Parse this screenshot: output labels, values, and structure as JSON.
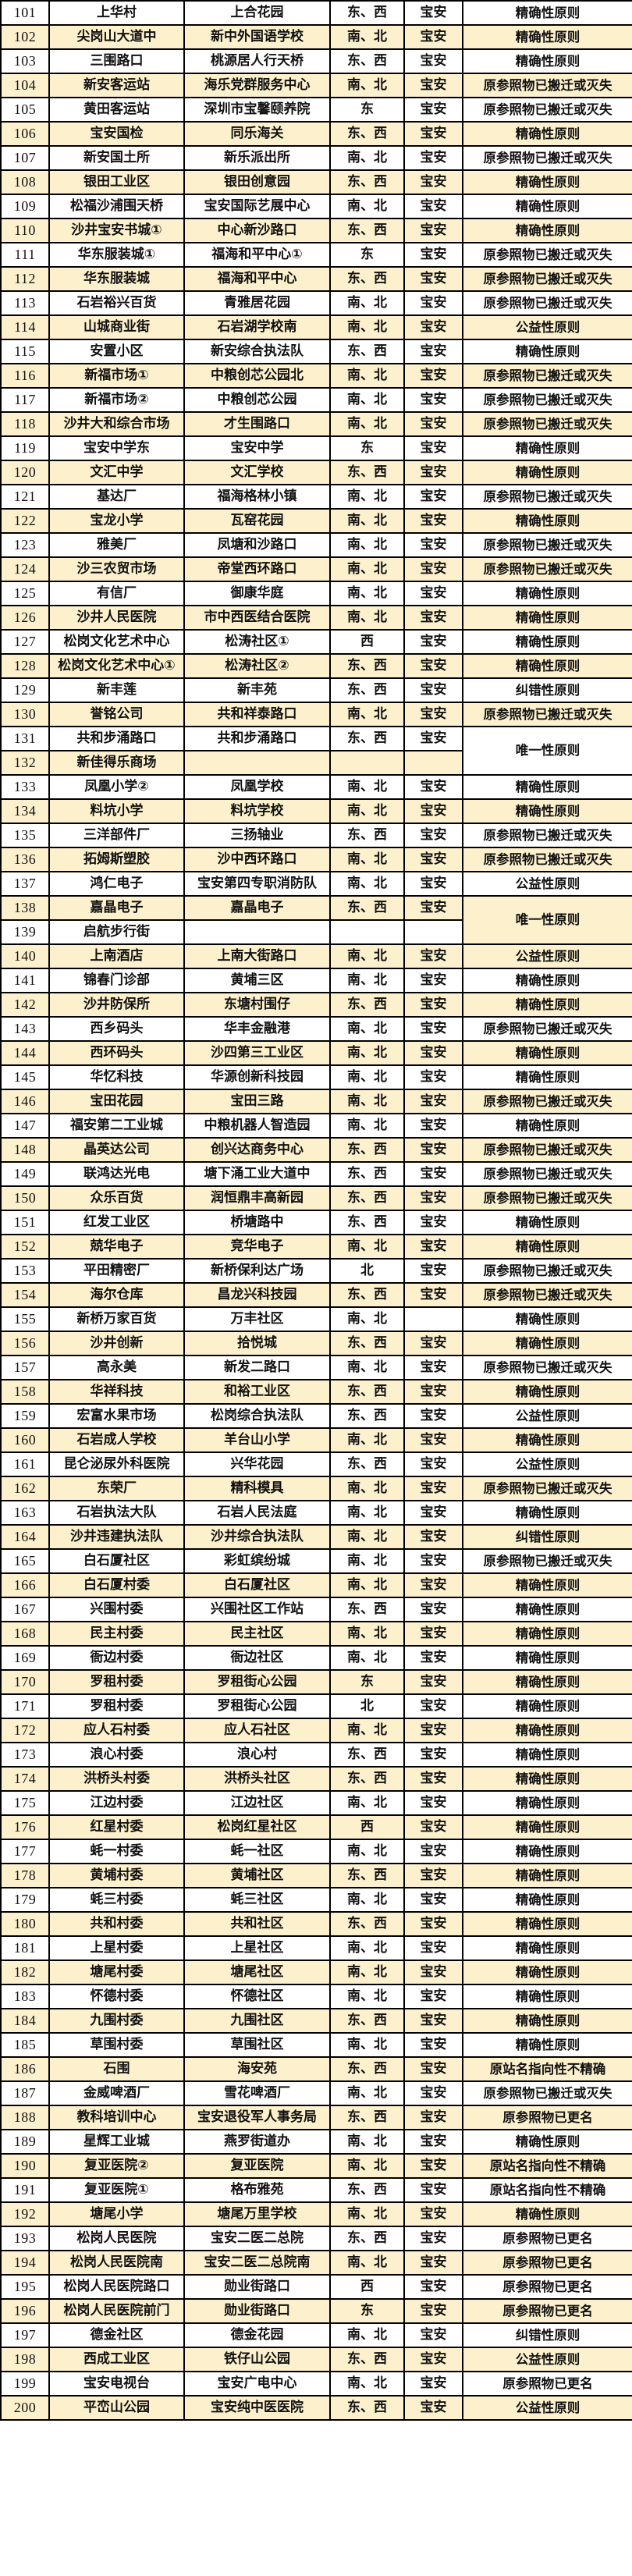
{
  "table": {
    "district_label": "宝安",
    "reason_types": [
      "精确性原则",
      "原参照物已搬迁或灭失",
      "公益性原则",
      "唯一性原则",
      "纠错性原则",
      "原站名指向性不精确",
      "原参照物已更名"
    ],
    "direction_types": [
      "东、西",
      "南、北",
      "东",
      "西",
      "北"
    ],
    "stripe_color": "#fdf1cd",
    "rows": [
      {
        "no": "101",
        "old": "上华村",
        "new": "上合花园",
        "dir": "东、西",
        "district": "宝安",
        "reason": "精确性原则"
      },
      {
        "no": "102",
        "old": "尖岗山大道中",
        "new": "新中外国语学校",
        "dir": "南、北",
        "district": "宝安",
        "reason": "精确性原则"
      },
      {
        "no": "103",
        "old": "三围路口",
        "new": "桃源居人行天桥",
        "dir": "东、西",
        "district": "宝安",
        "reason": "精确性原则"
      },
      {
        "no": "104",
        "old": "新安客运站",
        "new": "海乐党群服务中心",
        "dir": "南、北",
        "district": "宝安",
        "reason": "原参照物已搬迁或灭失"
      },
      {
        "no": "105",
        "old": "黄田客运站",
        "new": "深圳市宝馨颐养院",
        "dir": "东",
        "district": "宝安",
        "reason": "原参照物已搬迁或灭失"
      },
      {
        "no": "106",
        "old": "宝安国检",
        "new": "同乐海关",
        "dir": "东、西",
        "district": "宝安",
        "reason": "精确性原则"
      },
      {
        "no": "107",
        "old": "新安国土所",
        "new": "新乐派出所",
        "dir": "南、北",
        "district": "宝安",
        "reason": "原参照物已搬迁或灭失"
      },
      {
        "no": "108",
        "old": "银田工业区",
        "new": "银田创意园",
        "dir": "东、西",
        "district": "宝安",
        "reason": "精确性原则"
      },
      {
        "no": "109",
        "old": "松福沙浦围天桥",
        "new": "宝安国际艺展中心",
        "dir": "南、北",
        "district": "宝安",
        "reason": "精确性原则"
      },
      {
        "no": "110",
        "old": "沙井宝安书城①",
        "new": "中心新沙路口",
        "dir": "东、西",
        "district": "宝安",
        "reason": "精确性原则"
      },
      {
        "no": "111",
        "old": "华东服装城①",
        "new": "福海和平中心①",
        "dir": "东",
        "district": "宝安",
        "reason": "原参照物已搬迁或灭失"
      },
      {
        "no": "112",
        "old": "华东服装城",
        "new": "福海和平中心",
        "dir": "东、西",
        "district": "宝安",
        "reason": "原参照物已搬迁或灭失"
      },
      {
        "no": "113",
        "old": "石岩裕兴百货",
        "new": "青雅居花园",
        "dir": "南、北",
        "district": "宝安",
        "reason": "原参照物已搬迁或灭失"
      },
      {
        "no": "114",
        "old": "山城商业街",
        "new": "石岩湖学校南",
        "dir": "南、北",
        "district": "宝安",
        "reason": "公益性原则"
      },
      {
        "no": "115",
        "old": "安置小区",
        "new": "新安综合执法队",
        "dir": "东、西",
        "district": "宝安",
        "reason": "精确性原则"
      },
      {
        "no": "116",
        "old": "新福市场①",
        "new": "中粮创芯公园北",
        "dir": "南、北",
        "district": "宝安",
        "reason": "原参照物已搬迁或灭失"
      },
      {
        "no": "117",
        "old": "新福市场②",
        "new": "中粮创芯公园",
        "dir": "南、北",
        "district": "宝安",
        "reason": "原参照物已搬迁或灭失"
      },
      {
        "no": "118",
        "old": "沙井大和综合市场",
        "new": "才生围路口",
        "dir": "南、北",
        "district": "宝安",
        "reason": "原参照物已搬迁或灭失"
      },
      {
        "no": "119",
        "old": "宝安中学东",
        "new": "宝安中学",
        "dir": "东",
        "district": "宝安",
        "reason": "精确性原则"
      },
      {
        "no": "120",
        "old": "文汇中学",
        "new": "文汇学校",
        "dir": "东、西",
        "district": "宝安",
        "reason": "精确性原则"
      },
      {
        "no": "121",
        "old": "基达厂",
        "new": "福海格林小镇",
        "dir": "南、北",
        "district": "宝安",
        "reason": "原参照物已搬迁或灭失"
      },
      {
        "no": "122",
        "old": "宝龙小学",
        "new": "瓦窑花园",
        "dir": "南、北",
        "district": "宝安",
        "reason": "精确性原则"
      },
      {
        "no": "123",
        "old": "雅美厂",
        "new": "凤塘和沙路口",
        "dir": "南、北",
        "district": "宝安",
        "reason": "原参照物已搬迁或灭失"
      },
      {
        "no": "124",
        "old": "沙三农贸市场",
        "new": "帝堂西环路口",
        "dir": "南、北",
        "district": "宝安",
        "reason": "原参照物已搬迁或灭失"
      },
      {
        "no": "125",
        "old": "有信厂",
        "new": "御康华庭",
        "dir": "南、北",
        "district": "宝安",
        "reason": "精确性原则"
      },
      {
        "no": "126",
        "old": "沙井人民医院",
        "new": "市中西医结合医院",
        "dir": "南、北",
        "district": "宝安",
        "reason": "精确性原则"
      },
      {
        "no": "127",
        "old": "松岗文化艺术中心",
        "new": "松涛社区①",
        "dir": "西",
        "district": "宝安",
        "reason": "精确性原则"
      },
      {
        "no": "128",
        "old": "松岗文化艺术中心①",
        "new": "松涛社区②",
        "dir": "东、西",
        "district": "宝安",
        "reason": "精确性原则"
      },
      {
        "no": "129",
        "old": "新丰莲",
        "new": "新丰苑",
        "dir": "东、西",
        "district": "宝安",
        "reason": "纠错性原则"
      },
      {
        "no": "130",
        "old": "誉铭公司",
        "new": "共和祥泰路口",
        "dir": "南、北",
        "district": "宝安",
        "reason": "原参照物已搬迁或灭失"
      },
      {
        "no": "131",
        "old": "共和步涌路口",
        "new": "共和步涌路口",
        "dir": "东、西",
        "district": "宝安",
        "reason": "唯一性原则",
        "reason_rowspan": 2
      },
      {
        "no": "132",
        "old": "新佳得乐商场",
        "new": "",
        "dir": "",
        "district": "",
        "reason": null
      },
      {
        "no": "133",
        "old": "凤凰小学②",
        "new": "凤凰学校",
        "dir": "南、北",
        "district": "宝安",
        "reason": "精确性原则"
      },
      {
        "no": "134",
        "old": "料坑小学",
        "new": "料坑学校",
        "dir": "南、北",
        "district": "宝安",
        "reason": "精确性原则"
      },
      {
        "no": "135",
        "old": "三洋部件厂",
        "new": "三扬轴业",
        "dir": "东、西",
        "district": "宝安",
        "reason": "原参照物已搬迁或灭失"
      },
      {
        "no": "136",
        "old": "拓姆斯塑胶",
        "new": "沙中西环路口",
        "dir": "南、北",
        "district": "宝安",
        "reason": "原参照物已搬迁或灭失"
      },
      {
        "no": "137",
        "old": "鸿仁电子",
        "new": "宝安第四专职消防队",
        "dir": "南、北",
        "district": "宝安",
        "reason": "公益性原则"
      },
      {
        "no": "138",
        "old": "嘉晶电子",
        "new": "嘉晶电子",
        "dir": "东、西",
        "district": "宝安",
        "reason": "唯一性原则",
        "reason_rowspan": 2
      },
      {
        "no": "139",
        "old": "启航步行街",
        "new": "",
        "dir": "",
        "district": "",
        "reason": null
      },
      {
        "no": "140",
        "old": "上南酒店",
        "new": "上南大街路口",
        "dir": "南、北",
        "district": "宝安",
        "reason": "公益性原则"
      },
      {
        "no": "141",
        "old": "锦春门诊部",
        "new": "黄埔三区",
        "dir": "南、北",
        "district": "宝安",
        "reason": "精确性原则"
      },
      {
        "no": "142",
        "old": "沙井防保所",
        "new": "东塘村围仔",
        "dir": "东、西",
        "district": "宝安",
        "reason": "精确性原则"
      },
      {
        "no": "143",
        "old": "西乡码头",
        "new": "华丰金融港",
        "dir": "南、北",
        "district": "宝安",
        "reason": "原参照物已搬迁或灭失"
      },
      {
        "no": "144",
        "old": "西环码头",
        "new": "沙四第三工业区",
        "dir": "南、北",
        "district": "宝安",
        "reason": "精确性原则"
      },
      {
        "no": "145",
        "old": "华忆科技",
        "new": "华源创新科技园",
        "dir": "南、北",
        "district": "宝安",
        "reason": "精确性原则"
      },
      {
        "no": "146",
        "old": "宝田花园",
        "new": "宝田三路",
        "dir": "南、北",
        "district": "宝安",
        "reason": "原参照物已搬迁或灭失"
      },
      {
        "no": "147",
        "old": "福安第二工业城",
        "new": "中粮机器人智造园",
        "dir": "南、北",
        "district": "宝安",
        "reason": "精确性原则"
      },
      {
        "no": "148",
        "old": "晶英达公司",
        "new": "创兴达商务中心",
        "dir": "东、西",
        "district": "宝安",
        "reason": "原参照物已搬迁或灭失"
      },
      {
        "no": "149",
        "old": "联鸿达光电",
        "new": "塘下涌工业大道中",
        "dir": "东、西",
        "district": "宝安",
        "reason": "原参照物已搬迁或灭失"
      },
      {
        "no": "150",
        "old": "众乐百货",
        "new": "润恒鼎丰高新园",
        "dir": "东、西",
        "district": "宝安",
        "reason": "原参照物已搬迁或灭失"
      },
      {
        "no": "151",
        "old": "红发工业区",
        "new": "桥塘路中",
        "dir": "东、西",
        "district": "宝安",
        "reason": "精确性原则"
      },
      {
        "no": "152",
        "old": "兢华电子",
        "new": "竞华电子",
        "dir": "南、北",
        "district": "宝安",
        "reason": "精确性原则"
      },
      {
        "no": "153",
        "old": "平田精密厂",
        "new": "新桥保利达广场",
        "dir": "北",
        "district": "宝安",
        "reason": "原参照物已搬迁或灭失"
      },
      {
        "no": "154",
        "old": "海尔仓库",
        "new": "昌龙兴科技园",
        "dir": "东、西",
        "district": "宝安",
        "reason": "原参照物已搬迁或灭失"
      },
      {
        "no": "155",
        "old": "新桥万家百货",
        "new": "万丰社区",
        "dir": "南、北",
        "district": "",
        "reason": "精确性原则"
      },
      {
        "no": "156",
        "old": "沙井创新",
        "new": "拾悦城",
        "dir": "东、西",
        "district": "宝安",
        "reason": "精确性原则"
      },
      {
        "no": "157",
        "old": "高永美",
        "new": "新发二路口",
        "dir": "南、北",
        "district": "宝安",
        "reason": "原参照物已搬迁或灭失"
      },
      {
        "no": "158",
        "old": "华祥科技",
        "new": "和裕工业区",
        "dir": "东、西",
        "district": "宝安",
        "reason": "精确性原则"
      },
      {
        "no": "159",
        "old": "宏富水果市场",
        "new": "松岗综合执法队",
        "dir": "东、西",
        "district": "宝安",
        "reason": "公益性原则"
      },
      {
        "no": "160",
        "old": "石岩成人学校",
        "new": "羊台山小学",
        "dir": "南、北",
        "district": "宝安",
        "reason": "精确性原则"
      },
      {
        "no": "161",
        "old": "昆仑泌尿外科医院",
        "new": "兴华花园",
        "dir": "东、西",
        "district": "宝安",
        "reason": "公益性原则"
      },
      {
        "no": "162",
        "old": "东荣厂",
        "new": "精科模具",
        "dir": "南、北",
        "district": "宝安",
        "reason": "原参照物已搬迁或灭失"
      },
      {
        "no": "163",
        "old": "石岩执法大队",
        "new": "石岩人民法庭",
        "dir": "南、北",
        "district": "宝安",
        "reason": "精确性原则"
      },
      {
        "no": "164",
        "old": "沙井违建执法队",
        "new": "沙井综合执法队",
        "dir": "南、北",
        "district": "宝安",
        "reason": "纠错性原则"
      },
      {
        "no": "165",
        "old": "白石厦社区",
        "new": "彩虹缤纷城",
        "dir": "南、北",
        "district": "宝安",
        "reason": "原参照物已搬迁或灭失"
      },
      {
        "no": "166",
        "old": "白石厦村委",
        "new": "白石厦社区",
        "dir": "南、北",
        "district": "宝安",
        "reason": "精确性原则"
      },
      {
        "no": "167",
        "old": "兴围村委",
        "new": "兴围社区工作站",
        "dir": "东、西",
        "district": "宝安",
        "reason": "精确性原则"
      },
      {
        "no": "168",
        "old": "民主村委",
        "new": "民主社区",
        "dir": "南、北",
        "district": "宝安",
        "reason": "精确性原则"
      },
      {
        "no": "169",
        "old": "衙边村委",
        "new": "衙边社区",
        "dir": "南、北",
        "district": "宝安",
        "reason": "精确性原则"
      },
      {
        "no": "170",
        "old": "罗租村委",
        "new": "罗租街心公园",
        "dir": "东",
        "district": "宝安",
        "reason": "精确性原则"
      },
      {
        "no": "171",
        "old": "罗租村委",
        "new": "罗租街心公园",
        "dir": "北",
        "district": "宝安",
        "reason": "精确性原则"
      },
      {
        "no": "172",
        "old": "应人石村委",
        "new": "应人石社区",
        "dir": "南、北",
        "district": "宝安",
        "reason": "精确性原则"
      },
      {
        "no": "173",
        "old": "浪心村委",
        "new": "浪心村",
        "dir": "东、西",
        "district": "宝安",
        "reason": "精确性原则"
      },
      {
        "no": "174",
        "old": "洪桥头村委",
        "new": "洪桥头社区",
        "dir": "东、西",
        "district": "宝安",
        "reason": "精确性原则"
      },
      {
        "no": "175",
        "old": "江边村委",
        "new": "江边社区",
        "dir": "南、北",
        "district": "宝安",
        "reason": "精确性原则"
      },
      {
        "no": "176",
        "old": "红星村委",
        "new": "松岗红星社区",
        "dir": "西",
        "district": "宝安",
        "reason": "精确性原则"
      },
      {
        "no": "177",
        "old": "蚝一村委",
        "new": "蚝一社区",
        "dir": "南、北",
        "district": "宝安",
        "reason": "精确性原则"
      },
      {
        "no": "178",
        "old": "黄埔村委",
        "new": "黄埔社区",
        "dir": "东、西",
        "district": "宝安",
        "reason": "精确性原则"
      },
      {
        "no": "179",
        "old": "蚝三村委",
        "new": "蚝三社区",
        "dir": "南、北",
        "district": "宝安",
        "reason": "精确性原则"
      },
      {
        "no": "180",
        "old": "共和村委",
        "new": "共和社区",
        "dir": "东、西",
        "district": "宝安",
        "reason": "精确性原则"
      },
      {
        "no": "181",
        "old": "上星村委",
        "new": "上星社区",
        "dir": "南、北",
        "district": "宝安",
        "reason": "精确性原则"
      },
      {
        "no": "182",
        "old": "塘尾村委",
        "new": "塘尾社区",
        "dir": "南、北",
        "district": "宝安",
        "reason": "精确性原则"
      },
      {
        "no": "183",
        "old": "怀德村委",
        "new": "怀德社区",
        "dir": "南、北",
        "district": "宝安",
        "reason": "精确性原则"
      },
      {
        "no": "184",
        "old": "九围村委",
        "new": "九围社区",
        "dir": "东、西",
        "district": "宝安",
        "reason": "精确性原则"
      },
      {
        "no": "185",
        "old": "草围村委",
        "new": "草围社区",
        "dir": "南、北",
        "district": "宝安",
        "reason": "精确性原则"
      },
      {
        "no": "186",
        "old": "石围",
        "new": "海安苑",
        "dir": "东、西",
        "district": "宝安",
        "reason": "原站名指向性不精确"
      },
      {
        "no": "187",
        "old": "金威啤酒厂",
        "new": "雪花啤酒厂",
        "dir": "南、北",
        "district": "宝安",
        "reason": "原参照物已搬迁或灭失"
      },
      {
        "no": "188",
        "old": "教科培训中心",
        "new": "宝安退役军人事务局",
        "dir": "东、西",
        "district": "宝安",
        "reason": "原参照物已更名"
      },
      {
        "no": "189",
        "old": "星辉工业城",
        "new": "燕罗街道办",
        "dir": "南、北",
        "district": "宝安",
        "reason": "精确性原则"
      },
      {
        "no": "190",
        "old": "复亚医院②",
        "new": "复亚医院",
        "dir": "南、北",
        "district": "宝安",
        "reason": "原站名指向性不精确"
      },
      {
        "no": "191",
        "old": "复亚医院①",
        "new": "格布雅苑",
        "dir": "东、西",
        "district": "宝安",
        "reason": "原站名指向性不精确"
      },
      {
        "no": "192",
        "old": "塘尾小学",
        "new": "塘尾万里学校",
        "dir": "南、北",
        "district": "宝安",
        "reason": "精确性原则"
      },
      {
        "no": "193",
        "old": "松岗人民医院",
        "new": "宝安二医二总院",
        "dir": "东、西",
        "district": "宝安",
        "reason": "原参照物已更名"
      },
      {
        "no": "194",
        "old": "松岗人民医院南",
        "new": "宝安二医二总院南",
        "dir": "南、北",
        "district": "宝安",
        "reason": "原参照物已更名"
      },
      {
        "no": "195",
        "old": "松岗人民医院路口",
        "new": "勋业街路口",
        "dir": "西",
        "district": "宝安",
        "reason": "原参照物已更名"
      },
      {
        "no": "196",
        "old": "松岗人民医院前门",
        "new": "勋业街路口",
        "dir": "东",
        "district": "宝安",
        "reason": "原参照物已更名"
      },
      {
        "no": "197",
        "old": "德金社区",
        "new": "德金花园",
        "dir": "南、北",
        "district": "宝安",
        "reason": "纠错性原则"
      },
      {
        "no": "198",
        "old": "西成工业区",
        "new": "铁仔山公园",
        "dir": "东、西",
        "district": "宝安",
        "reason": "公益性原则"
      },
      {
        "no": "199",
        "old": "宝安电视台",
        "new": "宝安广电中心",
        "dir": "南、北",
        "district": "宝安",
        "reason": "原参照物已更名"
      },
      {
        "no": "200",
        "old": "平峦山公园",
        "new": "宝安纯中医医院",
        "dir": "东、西",
        "district": "宝安",
        "reason": "公益性原则"
      }
    ]
  }
}
